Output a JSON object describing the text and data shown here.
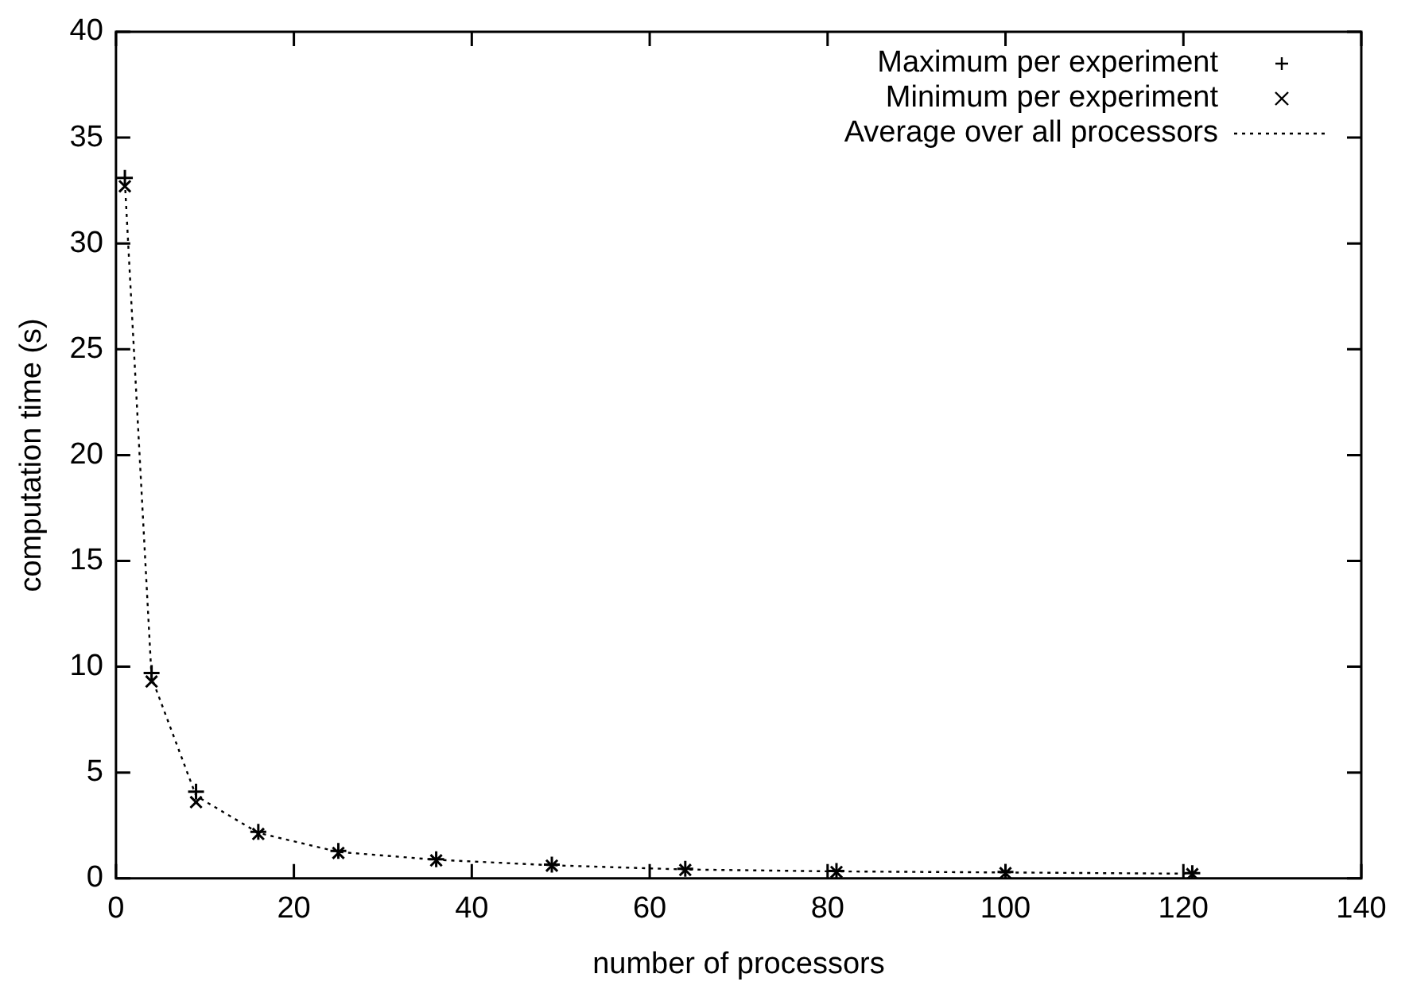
{
  "chart_data": {
    "type": "scatter",
    "xlabel": "number of processors",
    "ylabel": "computation time (s)",
    "x": [
      1,
      4,
      9,
      16,
      25,
      36,
      49,
      64,
      81,
      100,
      121
    ],
    "series": [
      {
        "name": "Maximum per experiment",
        "color": "#000000",
        "type": "scatter",
        "marker": "cross",
        "values": [
          33.1,
          9.7,
          4.1,
          2.2,
          1.3,
          0.9,
          0.65,
          0.45,
          0.35,
          0.3,
          0.25
        ]
      },
      {
        "name": "Minimum per experiment",
        "color": "#000000",
        "type": "scatter",
        "marker": "x",
        "values": [
          32.7,
          9.3,
          3.6,
          2.1,
          1.2,
          0.85,
          0.6,
          0.4,
          0.3,
          0.25,
          0.2
        ]
      },
      {
        "name": "Average over all processors",
        "color": "#000000",
        "type": "line",
        "marker": "none",
        "line_style": "dotted",
        "values": [
          32.9,
          9.5,
          3.9,
          2.15,
          1.25,
          0.88,
          0.62,
          0.42,
          0.33,
          0.28,
          0.22
        ]
      }
    ],
    "xlim": [
      0,
      140
    ],
    "xticks": [
      0,
      20,
      40,
      60,
      80,
      100,
      120,
      140
    ],
    "ylim": [
      0,
      40
    ],
    "yticks": [
      0,
      5,
      10,
      15,
      20,
      25,
      30,
      35,
      40
    ],
    "grid": false,
    "legend": "top right"
  }
}
